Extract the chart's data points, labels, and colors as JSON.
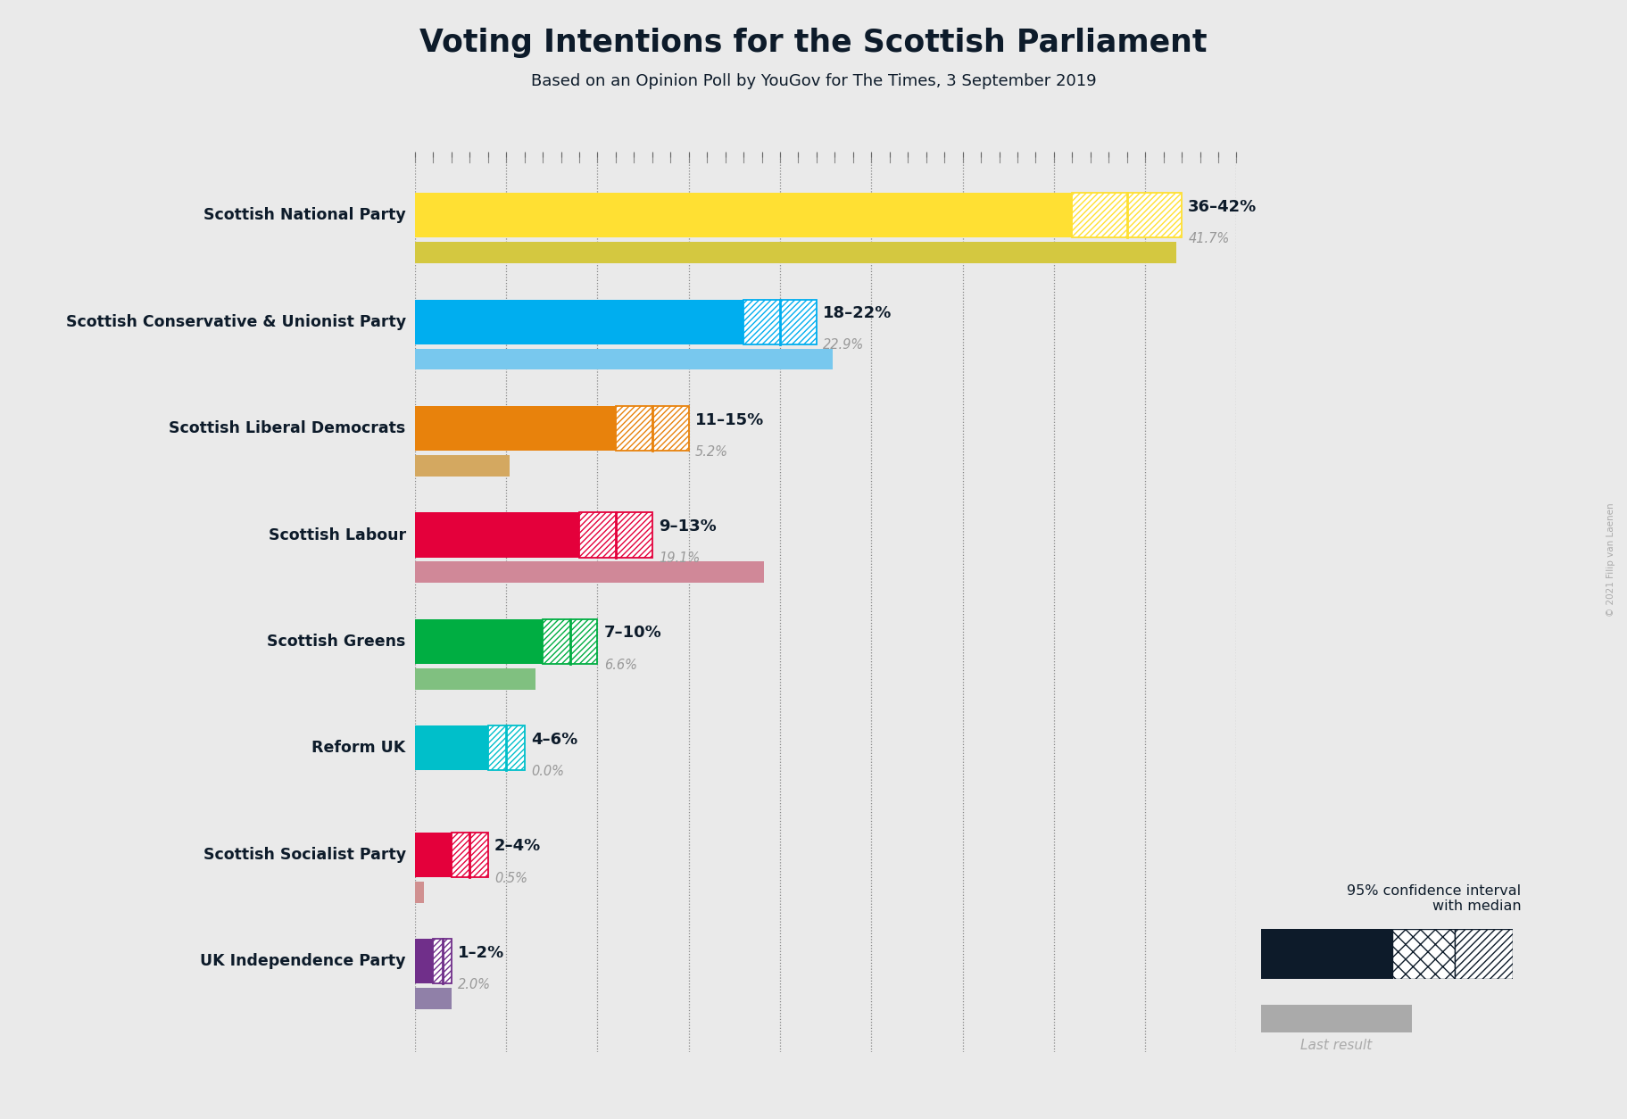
{
  "title": "Voting Intentions for the Scottish Parliament",
  "subtitle": "Based on an Opinion Poll by YouGov for The Times, 3 September 2019",
  "copyright": "© 2021 Filip van Laenen",
  "background_color": "#EAEAEA",
  "parties": [
    "Scottish National Party",
    "Scottish Conservative & Unionist Party",
    "Scottish Liberal Democrats",
    "Scottish Labour",
    "Scottish Greens",
    "Reform UK",
    "Scottish Socialist Party",
    "UK Independence Party"
  ],
  "ci_low": [
    36,
    18,
    11,
    9,
    7,
    4,
    2,
    1
  ],
  "ci_high": [
    42,
    22,
    15,
    13,
    10,
    6,
    4,
    2
  ],
  "last_result": [
    41.7,
    22.9,
    5.2,
    19.1,
    6.6,
    0.0,
    0.5,
    2.0
  ],
  "ci_labels": [
    "36–42%",
    "18–22%",
    "11–15%",
    "9–13%",
    "7–10%",
    "4–6%",
    "2–4%",
    "1–2%"
  ],
  "last_labels": [
    "41.7%",
    "22.9%",
    "5.2%",
    "19.1%",
    "6.6%",
    "0.0%",
    "0.5%",
    "2.0%"
  ],
  "colors": [
    "#FFE033",
    "#00AEEF",
    "#E8820C",
    "#E4003B",
    "#00AE42",
    "#00BFCA",
    "#E4003B",
    "#702F8A"
  ],
  "last_colors": [
    "#D4C840",
    "#78C8EE",
    "#D4A860",
    "#D08898",
    "#80C080",
    "#60C0C8",
    "#D09090",
    "#9080A8"
  ],
  "text_color": "#0D1B2A",
  "axis_max": 45
}
